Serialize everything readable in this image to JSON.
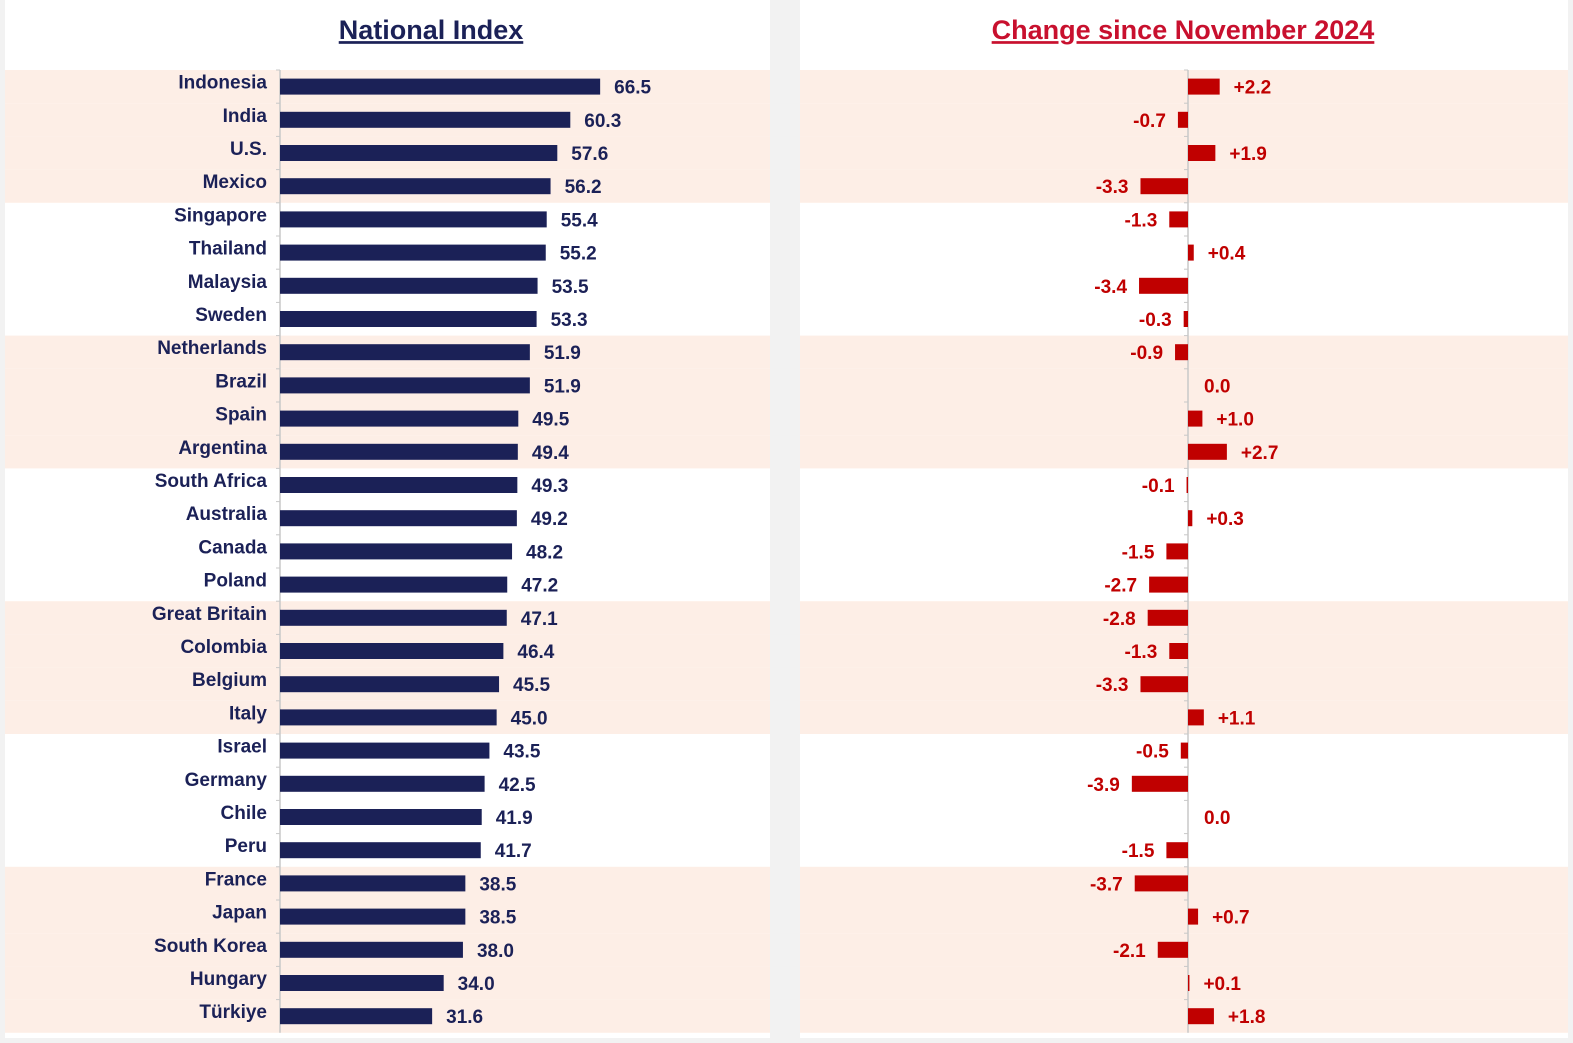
{
  "chart_data": [
    {
      "type": "hbar",
      "title": "National Index",
      "categories": [
        "Indonesia",
        "India",
        "U.S.",
        "Mexico",
        "Singapore",
        "Thailand",
        "Malaysia",
        "Sweden",
        "Netherlands",
        "Brazil",
        "Spain",
        "Argentina",
        "South Africa",
        "Australia",
        "Canada",
        "Poland",
        "Great Britain",
        "Colombia",
        "Belgium",
        "Italy",
        "Israel",
        "Germany",
        "Chile",
        "Peru",
        "France",
        "Japan",
        "South Korea",
        "Hungary",
        "Türkiye"
      ],
      "values": [
        66.5,
        60.3,
        57.6,
        56.2,
        55.4,
        55.2,
        53.5,
        53.3,
        51.9,
        51.9,
        49.5,
        49.4,
        49.3,
        49.2,
        48.2,
        47.2,
        47.1,
        46.4,
        45.5,
        45.0,
        43.5,
        42.5,
        41.9,
        41.7,
        38.5,
        38.5,
        38.0,
        34.0,
        31.6
      ],
      "value_labels": [
        "66.5",
        "60.3",
        "57.6",
        "56.2",
        "55.4",
        "55.2",
        "53.5",
        "53.3",
        "51.9",
        "51.9",
        "49.5",
        "49.4",
        "49.3",
        "49.2",
        "48.2",
        "47.2",
        "47.1",
        "46.4",
        "45.5",
        "45.0",
        "43.5",
        "42.5",
        "41.9",
        "41.7",
        "38.5",
        "38.5",
        "38.0",
        "34.0",
        "31.6"
      ],
      "color": "#1b2157",
      "xlim": [
        0,
        70
      ]
    },
    {
      "type": "hbar",
      "title": "Change since November 2024",
      "values": [
        2.2,
        -0.7,
        1.9,
        -3.3,
        -1.3,
        0.4,
        -3.4,
        -0.3,
        -0.9,
        0.0,
        1.0,
        2.7,
        -0.1,
        0.3,
        -1.5,
        -2.7,
        -2.8,
        -1.3,
        -3.3,
        1.1,
        -0.5,
        -3.9,
        0.0,
        -1.5,
        -3.7,
        0.7,
        -2.1,
        0.1,
        1.8
      ],
      "value_labels": [
        "+2.2",
        "-0.7",
        "+1.9",
        "-3.3",
        "-1.3",
        "+0.4",
        "-3.4",
        "-0.3",
        "-0.9",
        "0.0",
        "+1.0",
        "+2.7",
        "-0.1",
        "+0.3",
        "-1.5",
        "-2.7",
        "-2.8",
        "-1.3",
        "-3.3",
        "+1.1",
        "-0.5",
        "-3.9",
        "0.0",
        "-1.5",
        "-3.7",
        "+0.7",
        "-2.1",
        "+0.1",
        "+1.8"
      ],
      "color": "#c00000",
      "xlim": [
        -10,
        10
      ]
    }
  ]
}
